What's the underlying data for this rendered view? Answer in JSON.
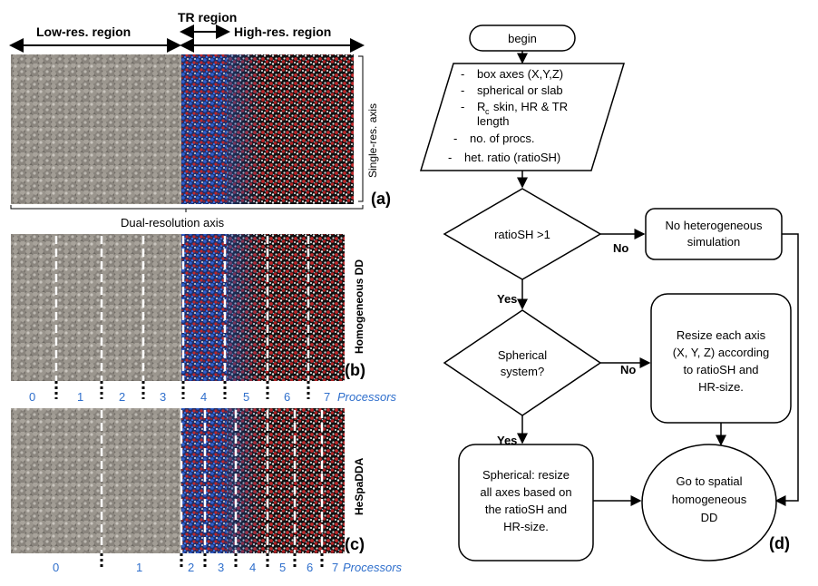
{
  "headers": {
    "low_res": "Low-res. region",
    "tr": "TR region",
    "high_res": "High-res. region"
  },
  "axes": {
    "single_res": "Single-res. axis",
    "dual_res": "Dual-resolution axis"
  },
  "panels": {
    "a": "(a)",
    "b": "(b)",
    "c": "(c)",
    "d": "(d)"
  },
  "side_labels": {
    "b": "Homogeneous DD",
    "c": "HeSpaDDA"
  },
  "processors": {
    "label": "Processors",
    "b": [
      "0",
      "1",
      "2",
      "3",
      "4",
      "5",
      "6",
      "7"
    ],
    "c": [
      "0",
      "1",
      "2",
      "3",
      "4",
      "5",
      "6",
      "7"
    ]
  },
  "flowchart": {
    "begin": "begin",
    "input_items": [
      "box axes (X,Y,Z)",
      "spherical or slab",
      "skin, HR & TR",
      "length",
      "no. of procs.",
      "het. ratio (ratioSH)"
    ],
    "rc_symbol": "R",
    "rc_sub": "c",
    "decision1": "ratioSH >1",
    "no_hetero": [
      "No heterogeneous",
      "simulation"
    ],
    "decision2": [
      "Spherical",
      "system?"
    ],
    "resize_axis": [
      "Resize each axis",
      "(X, Y, Z) according",
      "to ratioSH and",
      "HR-size."
    ],
    "spherical_resize": [
      "Spherical: resize",
      "all axes based on",
      "the ratioSH and",
      "HR-size."
    ],
    "goto": [
      "Go to spatial",
      "homogeneous",
      "DD"
    ],
    "yes": "Yes",
    "no": "No"
  },
  "colors": {
    "cg_bead": "#8f8a82",
    "water_red": "#c0282b",
    "water_white": "#e8e8e8",
    "tr_blue": "#2a4fa8",
    "proc_blue": "#2f6fcc"
  }
}
